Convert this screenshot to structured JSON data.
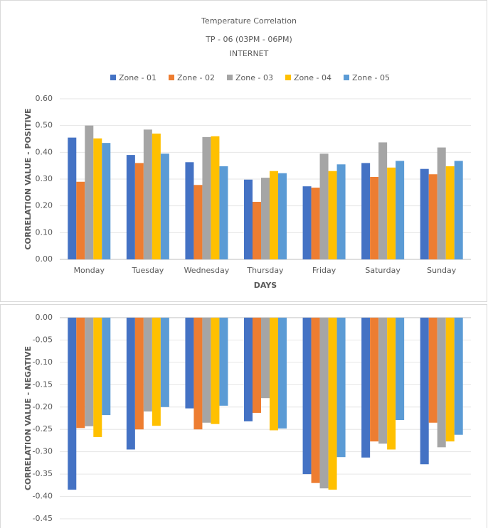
{
  "chart_data": [
    {
      "type": "bar",
      "title": "Temperature Correlation",
      "subtitles": [
        "TP - 06 (03PM - 06PM)",
        "INTERNET"
      ],
      "x_label": "DAYS",
      "y_label": "CORRELATION VALUE - POSITIVE",
      "categories": [
        "Monday",
        "Tuesday",
        "Wednesday",
        "Thursday",
        "Friday",
        "Saturday",
        "Sunday"
      ],
      "series": [
        {
          "name": "Zone - 01",
          "color": "#4472c4",
          "values": [
            0.455,
            0.39,
            0.363,
            0.298,
            0.273,
            0.36,
            0.338
          ]
        },
        {
          "name": "Zone - 02",
          "color": "#ed7d31",
          "values": [
            0.29,
            0.36,
            0.278,
            0.215,
            0.268,
            0.308,
            0.318
          ]
        },
        {
          "name": "Zone - 03",
          "color": "#a5a5a5",
          "values": [
            0.5,
            0.485,
            0.457,
            0.305,
            0.395,
            0.437,
            0.418
          ]
        },
        {
          "name": "Zone - 04",
          "color": "#ffc000",
          "values": [
            0.452,
            0.47,
            0.46,
            0.33,
            0.33,
            0.343,
            0.348
          ]
        },
        {
          "name": "Zone - 05",
          "color": "#5b9bd5",
          "values": [
            0.435,
            0.395,
            0.348,
            0.322,
            0.355,
            0.368,
            0.368
          ]
        }
      ],
      "ylim": [
        0,
        0.6
      ],
      "yticks": [
        {
          "value": 0,
          "label": "0.00"
        },
        {
          "value": 0.1,
          "label": "0.10"
        },
        {
          "value": 0.2,
          "label": "0.20"
        },
        {
          "value": 0.3,
          "label": "0.30"
        },
        {
          "value": 0.4,
          "label": "0.40"
        },
        {
          "value": 0.5,
          "label": "0.50"
        },
        {
          "value": 0.6,
          "label": "0.60"
        }
      ],
      "grid": true,
      "legend": "top"
    },
    {
      "type": "bar",
      "y_label": "CORRELATION VALUE - NEGATIVE",
      "series": [
        {
          "color": "#4472c4",
          "values": [
            -0.385,
            -0.295,
            -0.203,
            -0.232,
            -0.35,
            -0.313,
            -0.328
          ]
        },
        {
          "color": "#ed7d31",
          "values": [
            -0.247,
            -0.25,
            -0.25,
            -0.213,
            -0.37,
            -0.277,
            -0.235
          ]
        },
        {
          "color": "#a5a5a5",
          "values": [
            -0.243,
            -0.21,
            -0.235,
            -0.18,
            -0.382,
            -0.282,
            -0.29
          ]
        },
        {
          "color": "#ffc000",
          "values": [
            -0.267,
            -0.242,
            -0.238,
            -0.252,
            -0.385,
            -0.295,
            -0.277
          ]
        },
        {
          "color": "#5b9bd5",
          "values": [
            -0.218,
            -0.2,
            -0.197,
            -0.248,
            -0.312,
            -0.229,
            -0.262
          ]
        }
      ],
      "ylim": [
        -0.45,
        0
      ],
      "yticks": [
        {
          "value": 0,
          "label": "0.00"
        },
        {
          "value": -0.05,
          "label": "-0.05"
        },
        {
          "value": -0.1,
          "label": "-0.10"
        },
        {
          "value": -0.15,
          "label": "-0.15"
        },
        {
          "value": -0.2,
          "label": "-0.20"
        },
        {
          "value": -0.25,
          "label": "-0.25"
        },
        {
          "value": -0.3,
          "label": "-0.30"
        },
        {
          "value": -0.35,
          "label": "-0.35"
        },
        {
          "value": -0.4,
          "label": "-0.40"
        },
        {
          "value": -0.45,
          "label": "-0.45"
        }
      ],
      "grid": true
    }
  ]
}
